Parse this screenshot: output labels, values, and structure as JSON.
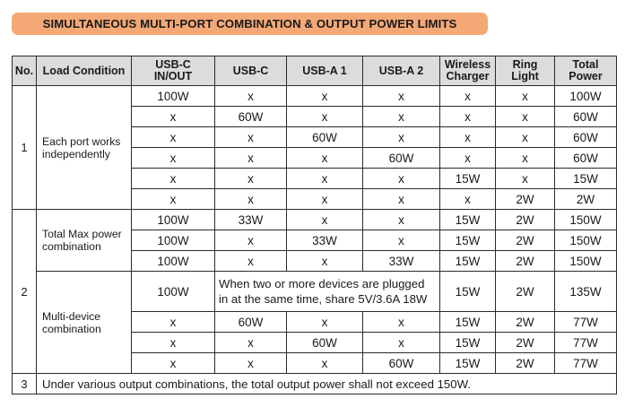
{
  "banner": {
    "title": "SIMULTANEOUS MULTI-PORT COMBINATION & OUTPUT POWER LIMITS"
  },
  "table": {
    "headers": {
      "no": "No.",
      "load": "Load Condition",
      "usbc_inout_1": "USB-C",
      "usbc_inout_2": "IN/OUT",
      "usbc": "USB-C",
      "usba1": "USB-A 1",
      "usba2": "USB-A 2",
      "wireless_1": "Wireless",
      "wireless_2": "Charger",
      "ring_1": "Ring",
      "ring_2": "Light",
      "total_1": "Total",
      "total_2": "Power"
    },
    "group1": {
      "no": "1",
      "condition_1": "Each port works",
      "condition_2": "independently",
      "rows": [
        [
          "100W",
          "x",
          "x",
          "x",
          "x",
          "x",
          "100W"
        ],
        [
          "x",
          "60W",
          "x",
          "x",
          "x",
          "x",
          "60W"
        ],
        [
          "x",
          "x",
          "60W",
          "x",
          "x",
          "x",
          "60W"
        ],
        [
          "x",
          "x",
          "x",
          "60W",
          "x",
          "x",
          "60W"
        ],
        [
          "x",
          "x",
          "x",
          "x",
          "15W",
          "x",
          "15W"
        ],
        [
          "x",
          "x",
          "x",
          "x",
          "x",
          "2W",
          "2W"
        ]
      ]
    },
    "group2": {
      "no": "2",
      "condition_a_1": "Total Max power",
      "condition_a_2": "combination",
      "rows_a": [
        [
          "100W",
          "33W",
          "x",
          "x",
          "15W",
          "2W",
          "150W"
        ],
        [
          "100W",
          "x",
          "33W",
          "x",
          "15W",
          "2W",
          "150W"
        ],
        [
          "100W",
          "x",
          "x",
          "33W",
          "15W",
          "2W",
          "150W"
        ]
      ],
      "condition_b_1": "Multi-device",
      "condition_b_2": "combination",
      "share_row": {
        "usbc_inout": "100W",
        "share_1": "When two or more devices are plugged",
        "share_2": "in at the same time, share 5V/3.6A 18W",
        "wireless": "15W",
        "ring": "2W",
        "total": "135W"
      },
      "rows_b": [
        [
          "x",
          "60W",
          "x",
          "x",
          "15W",
          "2W",
          "77W"
        ],
        [
          "x",
          "x",
          "60W",
          "x",
          "15W",
          "2W",
          "77W"
        ],
        [
          "x",
          "x",
          "x",
          "60W",
          "15W",
          "2W",
          "77W"
        ]
      ]
    },
    "group3": {
      "no": "3",
      "note": "Under various output combinations, the total output power shall not exceed 150W."
    }
  }
}
